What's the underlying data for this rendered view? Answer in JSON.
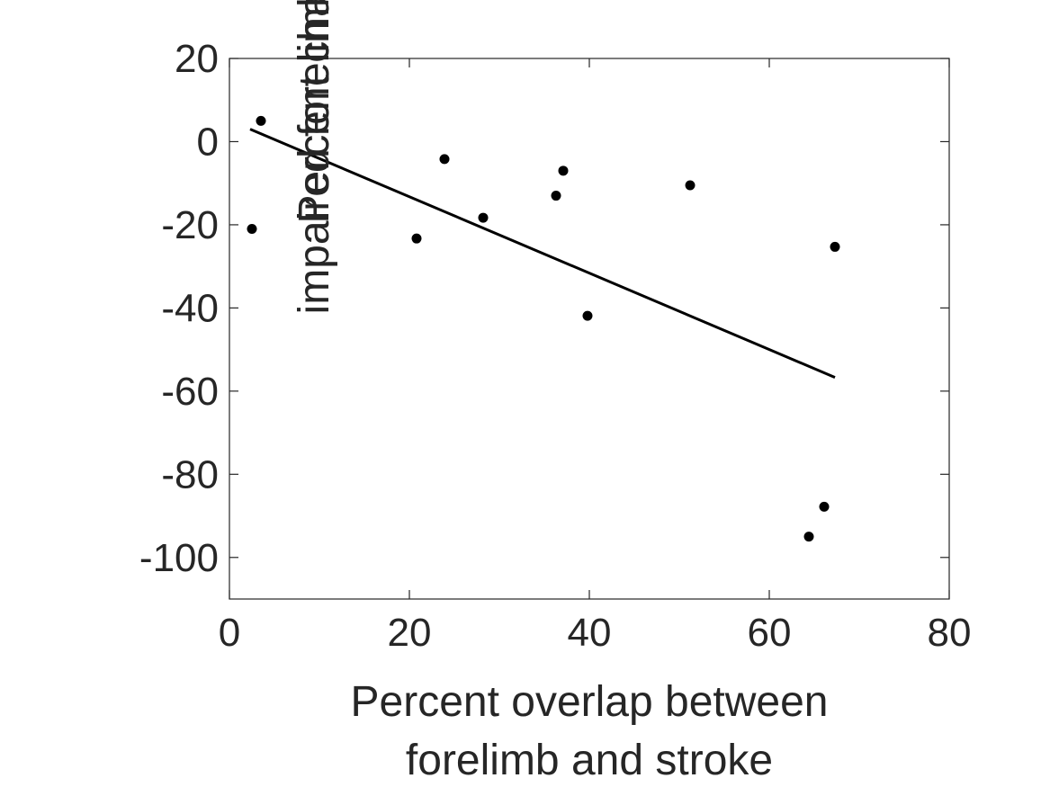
{
  "chart_data": {
    "type": "scatter",
    "title": "",
    "xlabel_lines": [
      "Percent overlap between",
      "forelimb and stroke"
    ],
    "ylabel_lines": [
      "Percent change in",
      "impaired forelimb use"
    ],
    "xlim": [
      0,
      80
    ],
    "ylim": [
      -110,
      20
    ],
    "xticks": [
      0,
      20,
      40,
      60,
      80
    ],
    "yticks": [
      20,
      0,
      -20,
      -40,
      -60,
      -80,
      -100
    ],
    "grid": false,
    "legend": "none",
    "marker_color": "#000000",
    "line_color": "#000000",
    "points": [
      {
        "x": 2.5,
        "y": -21
      },
      {
        "x": 3.5,
        "y": 5
      },
      {
        "x": 20.8,
        "y": -23.3
      },
      {
        "x": 23.9,
        "y": -4.2
      },
      {
        "x": 28.2,
        "y": -18.3
      },
      {
        "x": 36.3,
        "y": -13
      },
      {
        "x": 37.1,
        "y": -7
      },
      {
        "x": 39.8,
        "y": -41.9
      },
      {
        "x": 51.2,
        "y": -10.5
      },
      {
        "x": 64.4,
        "y": -95
      },
      {
        "x": 66.1,
        "y": -87.8
      },
      {
        "x": 67.3,
        "y": -25.3
      }
    ],
    "fit_line": {
      "x": [
        2.3,
        67.3
      ],
      "y": [
        3,
        -56.7
      ]
    }
  }
}
